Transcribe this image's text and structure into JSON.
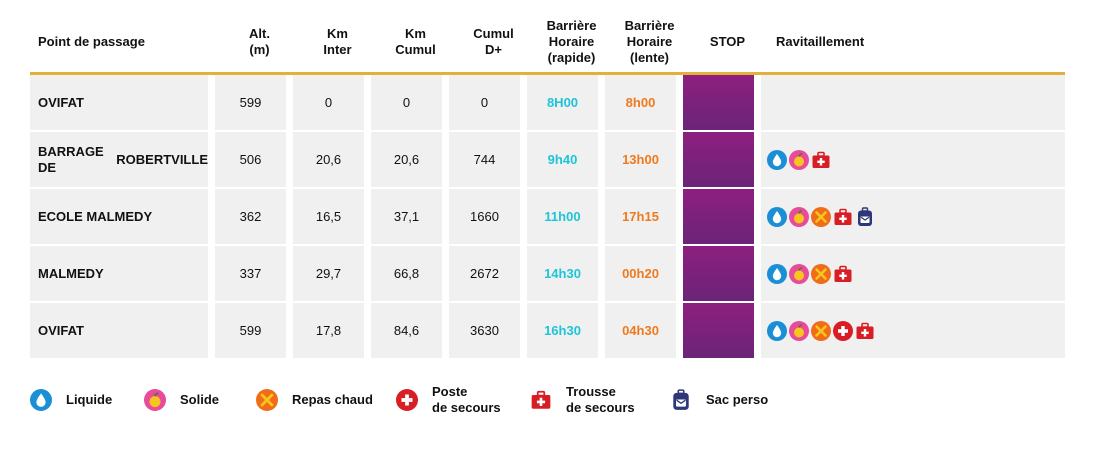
{
  "headers": {
    "point": "Point de passage",
    "alt": [
      "Alt.",
      "(m)"
    ],
    "km_inter": [
      "Km",
      "Inter"
    ],
    "km_cumul": [
      "Km",
      "Cumul"
    ],
    "cumul_d": [
      "Cumul",
      "D+"
    ],
    "bh_rapide": [
      "Barrière",
      "Horaire",
      "(rapide)"
    ],
    "bh_lente": [
      "Barrière",
      "Horaire",
      "(lente)"
    ],
    "stop": "STOP",
    "ravitaillement": "Ravitaillement"
  },
  "rows": [
    {
      "name": [
        "OVIFAT"
      ],
      "alt": "599",
      "km_inter": "0",
      "km_cumul": "0",
      "cumul_d": "0",
      "rapide": "8H00",
      "lente": "8h00",
      "icons": []
    },
    {
      "name": [
        "BARRAGE DE",
        "ROBERTVILLE"
      ],
      "alt": "506",
      "km_inter": "20,6",
      "km_cumul": "20,6",
      "cumul_d": "744",
      "rapide": "9h40",
      "lente": "13h00",
      "icons": [
        "liquide",
        "solide",
        "trousse"
      ]
    },
    {
      "name": [
        "ECOLE MALMEDY"
      ],
      "alt": "362",
      "km_inter": "16,5",
      "km_cumul": "37,1",
      "cumul_d": "1660",
      "rapide": "11h00",
      "lente": "17h15",
      "icons": [
        "liquide",
        "solide",
        "repas",
        "trousse",
        "sac"
      ]
    },
    {
      "name": [
        "MALMEDY"
      ],
      "alt": "337",
      "km_inter": "29,7",
      "km_cumul": "66,8",
      "cumul_d": "2672",
      "rapide": "14h30",
      "lente": "00h20",
      "icons": [
        "liquide",
        "solide",
        "repas",
        "trousse"
      ]
    },
    {
      "name": [
        "OVIFAT"
      ],
      "alt": "599",
      "km_inter": "17,8",
      "km_cumul": "84,6",
      "cumul_d": "3630",
      "rapide": "16h30",
      "lente": "04h30",
      "icons": [
        "liquide",
        "solide",
        "repas",
        "poste",
        "trousse"
      ]
    }
  ],
  "legend": [
    {
      "icon": "liquide",
      "label": [
        "Liquide"
      ]
    },
    {
      "icon": "solide",
      "label": [
        "Solide"
      ]
    },
    {
      "icon": "repas",
      "label": [
        "Repas chaud"
      ]
    },
    {
      "icon": "poste",
      "label": [
        "Poste",
        "de secours"
      ]
    },
    {
      "icon": "trousse",
      "label": [
        "Trousse",
        "de secours"
      ]
    },
    {
      "icon": "sac",
      "label": [
        "Sac perso"
      ]
    }
  ],
  "colors": {
    "rapide": "#1ec4d8",
    "lente": "#ef7a1e",
    "stop_top": "#8e1f7f",
    "stop_bottom": "#6a2478",
    "header_rule": "#e2b13c",
    "row_bg": "#f0f0f0"
  }
}
